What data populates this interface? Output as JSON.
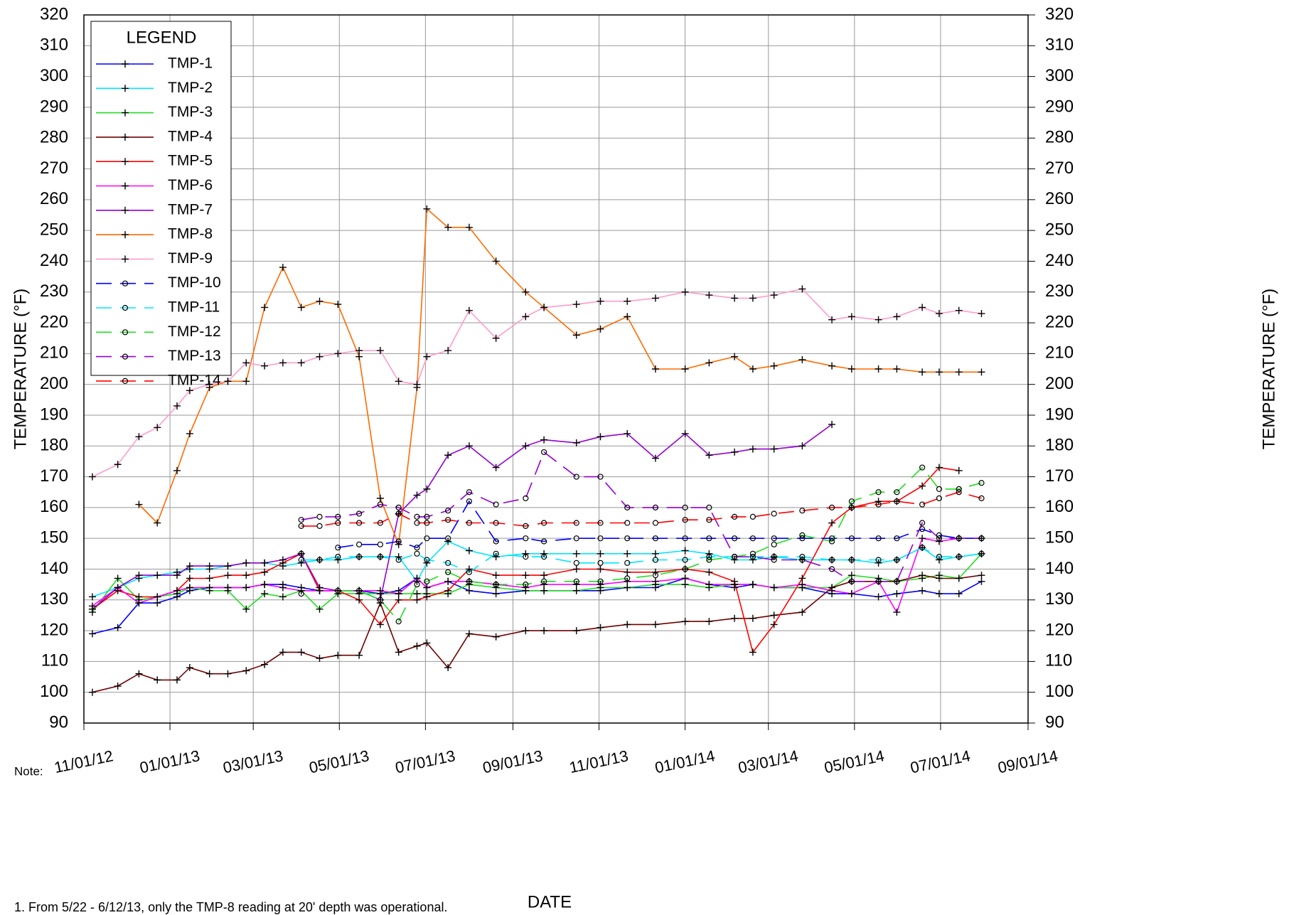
{
  "chart_data": {
    "type": "line",
    "xlabel": "DATE",
    "ylabel": "TEMPERATURE (°F)",
    "legend_title": "LEGEND",
    "legend": "upper left",
    "grid": true,
    "notes": [
      "Note:",
      "1. From 5/22 - 6/12/13, only the TMP-8 reading at 20' depth was operational."
    ],
    "x": [
      "2012-11-07",
      "2012-11-25",
      "2012-12-10",
      "2012-12-23",
      "2013-01-06",
      "2013-01-15",
      "2013-01-29",
      "2013-02-11",
      "2013-02-24",
      "2013-03-09",
      "2013-03-22",
      "2013-04-04",
      "2013-04-17",
      "2013-04-30",
      "2013-05-15",
      "2013-05-30",
      "2013-06-12",
      "2013-06-25",
      "2013-07-02",
      "2013-07-17",
      "2013-08-01",
      "2013-08-20",
      "2013-09-10",
      "2013-09-23",
      "2013-10-16",
      "2013-11-02",
      "2013-11-21",
      "2013-12-11",
      "2014-01-01",
      "2014-01-18",
      "2014-02-05",
      "2014-02-18",
      "2014-03-05",
      "2014-03-25",
      "2014-04-15",
      "2014-04-29",
      "2014-05-18",
      "2014-05-31",
      "2014-06-18",
      "2014-06-30",
      "2014-07-14",
      "2014-07-30"
    ],
    "xlim": [
      "2012-11-01",
      "2014-09-01"
    ],
    "xticks": [
      {
        "value": "2012-11-01",
        "label": "11/01/12"
      },
      {
        "value": "2013-01-01",
        "label": "01/01/13"
      },
      {
        "value": "2013-03-01",
        "label": "03/01/13"
      },
      {
        "value": "2013-05-01",
        "label": "05/01/13"
      },
      {
        "value": "2013-07-01",
        "label": "07/01/13"
      },
      {
        "value": "2013-09-01",
        "label": "09/01/13"
      },
      {
        "value": "2013-11-01",
        "label": "11/01/13"
      },
      {
        "value": "2014-01-01",
        "label": "01/01/14"
      },
      {
        "value": "2014-03-01",
        "label": "03/01/14"
      },
      {
        "value": "2014-05-01",
        "label": "05/01/14"
      },
      {
        "value": "2014-07-01",
        "label": "07/01/14"
      },
      {
        "value": "2014-09-01",
        "label": "09/01/14"
      }
    ],
    "ylim": [
      90,
      320
    ],
    "yticks": [
      90,
      100,
      110,
      120,
      130,
      140,
      150,
      160,
      170,
      180,
      190,
      200,
      210,
      220,
      230,
      240,
      250,
      260,
      270,
      280,
      290,
      300,
      310,
      320
    ],
    "series": [
      {
        "name": "TMP-1",
        "color": "#0000ff",
        "dash": false,
        "marker": "plus",
        "values": [
          119,
          121,
          129,
          129,
          131,
          133,
          134,
          134,
          134,
          135,
          135,
          134,
          133,
          133,
          133,
          132,
          133,
          137,
          134,
          136,
          133,
          132,
          133,
          133,
          133,
          133,
          134,
          134,
          137,
          135,
          134,
          135,
          134,
          134,
          132,
          132,
          131,
          132,
          133,
          132,
          132,
          136
        ]
      },
      {
        "name": "TMP-2",
        "color": "#00e5ff",
        "dash": false,
        "marker": "plus",
        "values": [
          131,
          134,
          137,
          138,
          139,
          140,
          140,
          141,
          142,
          142,
          141,
          142,
          143,
          143,
          144,
          144,
          144,
          136,
          142,
          149,
          146,
          144,
          145,
          145,
          145,
          145,
          145,
          145,
          146,
          145,
          143,
          143,
          144,
          143,
          143,
          143,
          142,
          143,
          147,
          143,
          144,
          145
        ]
      },
      {
        "name": "TMP-3",
        "color": "#22dd22",
        "dash": false,
        "marker": "plus",
        "values": [
          126,
          137,
          130,
          131,
          132,
          134,
          133,
          133,
          127,
          132,
          131,
          133,
          127,
          132,
          132,
          132,
          132,
          132,
          132,
          132,
          135,
          134,
          133,
          133,
          133,
          134,
          134,
          135,
          135,
          134,
          135,
          135,
          134,
          134,
          134,
          138,
          137,
          136,
          137,
          138,
          137,
          145
        ]
      },
      {
        "name": "TMP-4",
        "color": "#700000",
        "dash": false,
        "marker": "plus",
        "values": [
          100,
          102,
          106,
          104,
          104,
          108,
          106,
          106,
          107,
          109,
          113,
          113,
          111,
          112,
          112,
          129,
          113,
          115,
          116,
          108,
          119,
          118,
          120,
          120,
          120,
          121,
          122,
          122,
          123,
          123,
          124,
          124,
          125,
          126,
          134,
          136,
          136,
          136,
          138,
          137,
          137,
          138
        ]
      },
      {
        "name": "TMP-5",
        "color": "#ff0000",
        "dash": false,
        "marker": "plus",
        "values": [
          127,
          133,
          131,
          131,
          133,
          137,
          137,
          138,
          138,
          139,
          142,
          145,
          133,
          133,
          130,
          122,
          130,
          130,
          131,
          133,
          140,
          138,
          138,
          138,
          140,
          140,
          139,
          139,
          140,
          139,
          136,
          113,
          122,
          137,
          155,
          160,
          162,
          162,
          167,
          173,
          172,
          null
        ]
      },
      {
        "name": "TMP-6",
        "color": "#ff00ff",
        "dash": false,
        "marker": "plus",
        "values": [
          128,
          134,
          129,
          131,
          133,
          134,
          134,
          134,
          134,
          135,
          134,
          133,
          133,
          133,
          133,
          133,
          132,
          137,
          134,
          136,
          136,
          135,
          134,
          135,
          135,
          135,
          136,
          136,
          137,
          135,
          135,
          135,
          134,
          135,
          133,
          132,
          136,
          126,
          150,
          149,
          150,
          150
        ]
      },
      {
        "name": "TMP-7",
        "color": "#9400d3",
        "dash": false,
        "marker": "plus",
        "values": [
          127,
          134,
          138,
          138,
          138,
          141,
          141,
          141,
          142,
          142,
          143,
          145,
          134,
          133,
          133,
          130,
          158,
          164,
          166,
          177,
          180,
          173,
          180,
          182,
          181,
          183,
          184,
          176,
          184,
          177,
          178,
          179,
          179,
          180,
          187,
          null,
          null,
          null,
          null,
          null,
          null,
          null
        ]
      },
      {
        "name": "TMP-8",
        "color": "#ff6a00",
        "dash": false,
        "marker": "plus",
        "values": [
          null,
          null,
          161,
          155,
          172,
          184,
          199,
          201,
          201,
          225,
          238,
          225,
          227,
          226,
          209,
          163,
          148,
          199,
          257,
          251,
          251,
          240,
          230,
          225,
          216,
          218,
          222,
          205,
          205,
          207,
          209,
          205,
          206,
          208,
          206,
          205,
          205,
          205,
          204,
          204,
          204,
          204
        ]
      },
      {
        "name": "TMP-9",
        "color": "#ff9ccc",
        "dash": false,
        "marker": "plus",
        "values": [
          170,
          174,
          183,
          186,
          193,
          198,
          200,
          201,
          207,
          206,
          207,
          207,
          209,
          210,
          211,
          211,
          201,
          200,
          209,
          211,
          224,
          215,
          222,
          225,
          226,
          227,
          227,
          228,
          230,
          229,
          228,
          228,
          229,
          231,
          221,
          222,
          221,
          222,
          225,
          223,
          224,
          223
        ]
      },
      {
        "name": "TMP-10",
        "color": "#0000ff",
        "dash": true,
        "marker": "circle",
        "values": [
          null,
          null,
          null,
          null,
          null,
          null,
          null,
          null,
          null,
          null,
          null,
          145,
          null,
          147,
          148,
          148,
          149,
          147,
          150,
          150,
          162,
          149,
          150,
          149,
          150,
          150,
          150,
          150,
          150,
          150,
          150,
          150,
          150,
          150,
          150,
          150,
          150,
          150,
          153,
          151,
          150,
          150
        ]
      },
      {
        "name": "TMP-11",
        "color": "#00e5ff",
        "dash": true,
        "marker": "circle",
        "values": [
          null,
          null,
          null,
          null,
          null,
          null,
          null,
          null,
          null,
          null,
          null,
          143,
          143,
          144,
          144,
          144,
          143,
          145,
          143,
          142,
          139,
          145,
          144,
          144,
          142,
          142,
          142,
          143,
          143,
          144,
          144,
          144,
          144,
          144,
          143,
          143,
          143,
          143,
          147,
          144,
          144,
          145
        ]
      },
      {
        "name": "TMP-12",
        "color": "#22dd22",
        "dash": true,
        "marker": "circle",
        "values": [
          null,
          null,
          null,
          null,
          null,
          null,
          null,
          null,
          null,
          null,
          null,
          132,
          null,
          133,
          133,
          130,
          123,
          135,
          136,
          139,
          136,
          135,
          135,
          136,
          136,
          136,
          137,
          138,
          140,
          143,
          144,
          145,
          148,
          151,
          149,
          162,
          165,
          165,
          173,
          166,
          166,
          168
        ]
      },
      {
        "name": "TMP-13",
        "color": "#9400d3",
        "dash": true,
        "marker": "circle",
        "values": [
          null,
          null,
          null,
          null,
          null,
          null,
          null,
          null,
          null,
          null,
          null,
          156,
          157,
          157,
          158,
          161,
          160,
          157,
          157,
          159,
          165,
          161,
          163,
          178,
          170,
          170,
          160,
          160,
          160,
          160,
          144,
          144,
          143,
          143,
          140,
          136,
          136,
          136,
          155,
          150,
          150,
          150
        ]
      },
      {
        "name": "TMP-14",
        "color": "#ff0000",
        "dash": true,
        "marker": "circle",
        "values": [
          null,
          null,
          null,
          null,
          null,
          null,
          null,
          null,
          null,
          null,
          null,
          154,
          154,
          155,
          155,
          155,
          158,
          155,
          155,
          156,
          155,
          155,
          154,
          155,
          155,
          155,
          155,
          155,
          156,
          156,
          157,
          157,
          158,
          159,
          160,
          160,
          161,
          162,
          161,
          163,
          165,
          163
        ]
      }
    ]
  }
}
